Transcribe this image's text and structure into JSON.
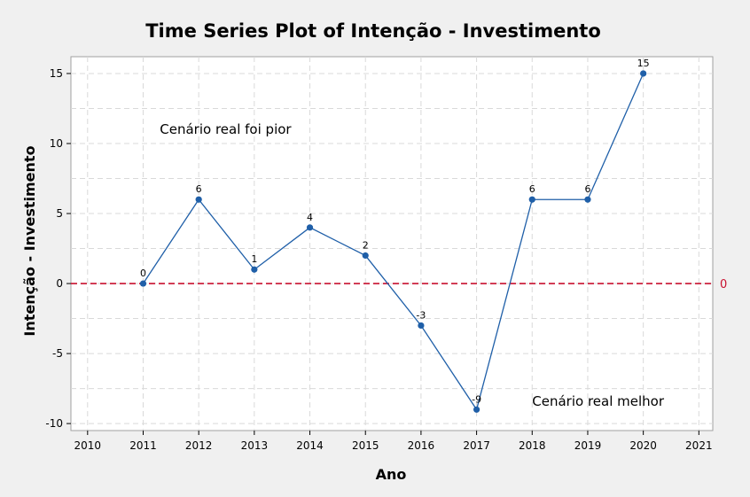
{
  "chart_data": {
    "type": "line",
    "title": "Time Series Plot of Intenção - Investimento",
    "xlabel": "Ano",
    "ylabel": "Intenção - Investimento",
    "x_ticks": [
      2010,
      2011,
      2012,
      2013,
      2014,
      2015,
      2016,
      2017,
      2018,
      2019,
      2020,
      2021
    ],
    "y_ticks": [
      -10,
      -5,
      0,
      5,
      10,
      15
    ],
    "xlim": [
      2009.7,
      2021.25
    ],
    "ylim": [
      -10.5,
      16.2
    ],
    "grid": true,
    "series": [
      {
        "name": "Intenção - Investimento",
        "color": "#1f5fa8",
        "x": [
          2011,
          2012,
          2013,
          2014,
          2015,
          2016,
          2017,
          2018,
          2019,
          2020
        ],
        "values": [
          0,
          6,
          1,
          4,
          2,
          -3,
          -9,
          6,
          6,
          15
        ],
        "labels": [
          "0",
          "6",
          "1",
          "4",
          "2",
          "-3",
          "-9",
          "6",
          "6",
          "15"
        ]
      }
    ],
    "reference_line": {
      "y": 0,
      "label": "0",
      "color": "#c8102e",
      "style": "dashed"
    },
    "annotations": [
      {
        "text": "Cenário real foi pior",
        "x": 2011.3,
        "y": 11
      },
      {
        "text": "Cenário real melhor",
        "x": 2018.0,
        "y": -8.4
      }
    ]
  }
}
